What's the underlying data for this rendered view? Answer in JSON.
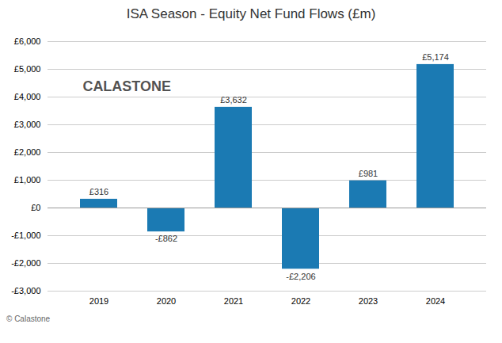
{
  "chart_data": {
    "type": "bar",
    "title": "ISA Season - Equity Net Fund Flows (£m)",
    "categories": [
      "2019",
      "2020",
      "2021",
      "2022",
      "2023",
      "2024"
    ],
    "values": [
      316,
      -862,
      3632,
      -2206,
      981,
      5174
    ],
    "value_labels": [
      "£316",
      "-£862",
      "£3,632",
      "-£2,206",
      "£981",
      "£5,174"
    ],
    "data_labels": true,
    "color": "#1b7ab3",
    "ylim": [
      -3000,
      6000
    ],
    "yticks": [
      {
        "value": -3000,
        "label": "-£3,000"
      },
      {
        "value": -2000,
        "label": "-£2,000"
      },
      {
        "value": -1000,
        "label": "-£1,000"
      },
      {
        "value": 0,
        "label": "£0"
      },
      {
        "value": 1000,
        "label": "£1,000"
      },
      {
        "value": 2000,
        "label": "£2,000"
      },
      {
        "value": 3000,
        "label": "£3,000"
      },
      {
        "value": 4000,
        "label": "£4,000"
      },
      {
        "value": 5000,
        "label": "£5,000"
      },
      {
        "value": 6000,
        "label": "£6,000"
      }
    ],
    "grid": true,
    "annotations": [
      "CALASTONE",
      "© Calastone"
    ]
  }
}
